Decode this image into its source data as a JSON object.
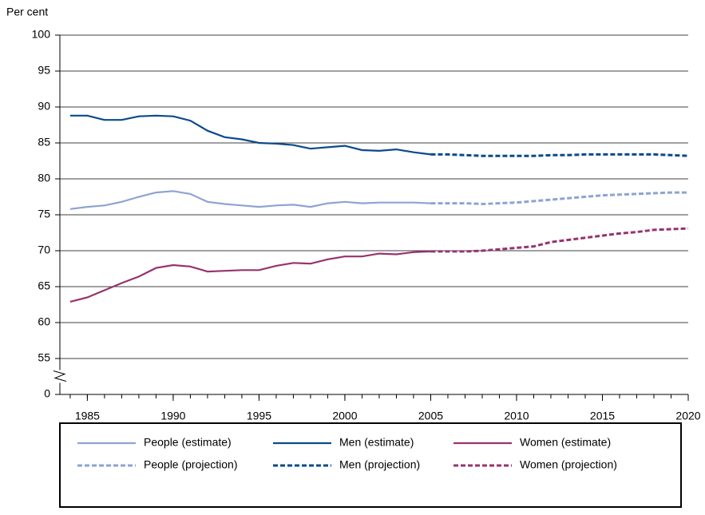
{
  "chart_data": {
    "type": "line",
    "y_label": "Per cent",
    "x": [
      1984,
      1985,
      1986,
      1987,
      1988,
      1989,
      1990,
      1991,
      1992,
      1993,
      1994,
      1995,
      1996,
      1997,
      1998,
      1999,
      2000,
      2001,
      2002,
      2003,
      2004,
      2005,
      2006,
      2007,
      2008,
      2009,
      2010,
      2011,
      2012,
      2013,
      2014,
      2015,
      2016,
      2017,
      2018,
      2019,
      2020
    ],
    "xlim": [
      1983.4,
      2020
    ],
    "xticks": [
      1985,
      1990,
      1995,
      2000,
      2005,
      2010,
      2015,
      2020
    ],
    "ylim": [
      0,
      100
    ],
    "yticks": [
      0,
      55,
      60,
      65,
      70,
      75,
      80,
      85,
      90,
      95,
      100
    ],
    "y_break": true,
    "grid": true,
    "series": [
      {
        "name": "People (estimate)",
        "color": "#8ea3d3",
        "dashed": false,
        "values": [
          75.8,
          76.1,
          76.3,
          76.8,
          77.5,
          78.1,
          78.3,
          77.9,
          76.8,
          76.5,
          76.3,
          76.1,
          76.3,
          76.4,
          76.1,
          76.6,
          76.8,
          76.6,
          76.7,
          76.7,
          76.7,
          76.6,
          null,
          null,
          null,
          null,
          null,
          null,
          null,
          null,
          null,
          null,
          null,
          null,
          null,
          null,
          null
        ]
      },
      {
        "name": "Men (estimate)",
        "color": "#0b4a8c",
        "dashed": false,
        "values": [
          88.8,
          88.8,
          88.2,
          88.2,
          88.7,
          88.8,
          88.7,
          88.1,
          86.7,
          85.8,
          85.5,
          85.0,
          84.9,
          84.7,
          84.2,
          84.4,
          84.6,
          84.0,
          83.9,
          84.1,
          83.7,
          83.4,
          null,
          null,
          null,
          null,
          null,
          null,
          null,
          null,
          null,
          null,
          null,
          null,
          null,
          null,
          null
        ]
      },
      {
        "name": "Women (estimate)",
        "color": "#96336e",
        "dashed": false,
        "values": [
          62.9,
          63.5,
          64.5,
          65.5,
          66.4,
          67.6,
          68.0,
          67.8,
          67.1,
          67.2,
          67.3,
          67.3,
          67.9,
          68.3,
          68.2,
          68.8,
          69.2,
          69.2,
          69.6,
          69.5,
          69.8,
          69.9,
          null,
          null,
          null,
          null,
          null,
          null,
          null,
          null,
          null,
          null,
          null,
          null,
          null,
          null,
          null
        ]
      },
      {
        "name": "People (projection)",
        "color": "#8ea3d3",
        "dashed": true,
        "values": [
          null,
          null,
          null,
          null,
          null,
          null,
          null,
          null,
          null,
          null,
          null,
          null,
          null,
          null,
          null,
          null,
          null,
          null,
          null,
          null,
          null,
          76.6,
          76.6,
          76.6,
          76.5,
          76.6,
          76.7,
          76.9,
          77.1,
          77.3,
          77.5,
          77.7,
          77.8,
          77.9,
          78.0,
          78.1,
          78.1
        ]
      },
      {
        "name": "Men (projection)",
        "color": "#0b4a8c",
        "dashed": true,
        "values": [
          null,
          null,
          null,
          null,
          null,
          null,
          null,
          null,
          null,
          null,
          null,
          null,
          null,
          null,
          null,
          null,
          null,
          null,
          null,
          null,
          null,
          83.4,
          83.4,
          83.3,
          83.2,
          83.2,
          83.2,
          83.2,
          83.3,
          83.3,
          83.4,
          83.4,
          83.4,
          83.4,
          83.4,
          83.3,
          83.2
        ]
      },
      {
        "name": "Women (projection)",
        "color": "#96336e",
        "dashed": true,
        "values": [
          null,
          null,
          null,
          null,
          null,
          null,
          null,
          null,
          null,
          null,
          null,
          null,
          null,
          null,
          null,
          null,
          null,
          null,
          null,
          null,
          null,
          69.9,
          69.9,
          69.9,
          70.0,
          70.2,
          70.4,
          70.6,
          71.2,
          71.5,
          71.8,
          72.1,
          72.4,
          72.6,
          72.9,
          73.0,
          73.1
        ]
      }
    ]
  }
}
